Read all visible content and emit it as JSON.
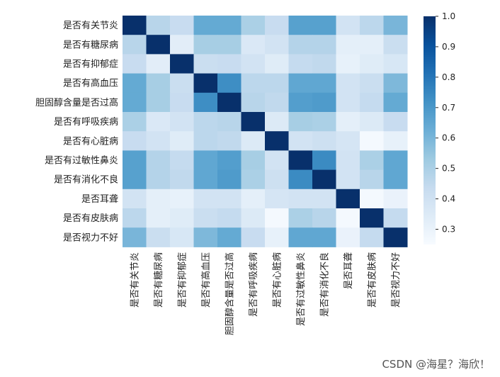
{
  "chart_data": {
    "type": "heatmap",
    "colormap": "Blues",
    "labels": [
      "是否有关节炎",
      "是否有糖尿病",
      "是否有抑郁症",
      "是否有高血压",
      "胆固醇含量是否过高",
      "是否有呼吸疾病",
      "是否有心脏病",
      "是否有过敏性鼻炎",
      "是否有消化不良",
      "是否耳聋",
      "是否有皮肤病",
      "是否视力不好"
    ],
    "values": [
      [
        1,
        0.47,
        0.43,
        0.64,
        0.64,
        0.5,
        0.43,
        0.67,
        0.67,
        0.39,
        0.46,
        0.6
      ],
      [
        0.47,
        1,
        0.33,
        0.51,
        0.51,
        0.36,
        0.39,
        0.48,
        0.48,
        0.32,
        0.32,
        0.42
      ],
      [
        0.43,
        0.33,
        1,
        0.42,
        0.43,
        0.39,
        0.34,
        0.44,
        0.45,
        0.31,
        0.34,
        0.37
      ],
      [
        0.64,
        0.51,
        0.42,
        1,
        0.73,
        0.46,
        0.46,
        0.65,
        0.65,
        0.39,
        0.42,
        0.59
      ],
      [
        0.64,
        0.51,
        0.43,
        0.73,
        1,
        0.47,
        0.45,
        0.68,
        0.69,
        0.39,
        0.44,
        0.64
      ],
      [
        0.5,
        0.36,
        0.39,
        0.46,
        0.47,
        1,
        0.35,
        0.51,
        0.5,
        0.32,
        0.35,
        0.43
      ],
      [
        0.43,
        0.39,
        0.34,
        0.46,
        0.45,
        0.35,
        1,
        0.39,
        0.41,
        0.38,
        0.26,
        0.31
      ],
      [
        0.67,
        0.48,
        0.44,
        0.65,
        0.68,
        0.51,
        0.39,
        1,
        0.74,
        0.39,
        0.5,
        0.65
      ],
      [
        0.67,
        0.48,
        0.45,
        0.65,
        0.69,
        0.5,
        0.41,
        0.74,
        1,
        0.39,
        0.47,
        0.65
      ],
      [
        0.39,
        0.32,
        0.31,
        0.39,
        0.39,
        0.32,
        0.38,
        0.39,
        0.39,
        1,
        0.26,
        0.3
      ],
      [
        0.46,
        0.32,
        0.34,
        0.42,
        0.44,
        0.35,
        0.26,
        0.5,
        0.47,
        0.26,
        1,
        0.44
      ],
      [
        0.6,
        0.42,
        0.37,
        0.59,
        0.64,
        0.43,
        0.31,
        0.65,
        0.65,
        0.3,
        0.44,
        1
      ]
    ],
    "vmin": 0.25,
    "vmax": 1.0,
    "colorbar_ticks": [
      "0.3",
      "0.4",
      "0.5",
      "0.6",
      "0.7",
      "0.8",
      "0.9",
      "1.0"
    ]
  },
  "watermark": "CSDN @海星？海欣！"
}
